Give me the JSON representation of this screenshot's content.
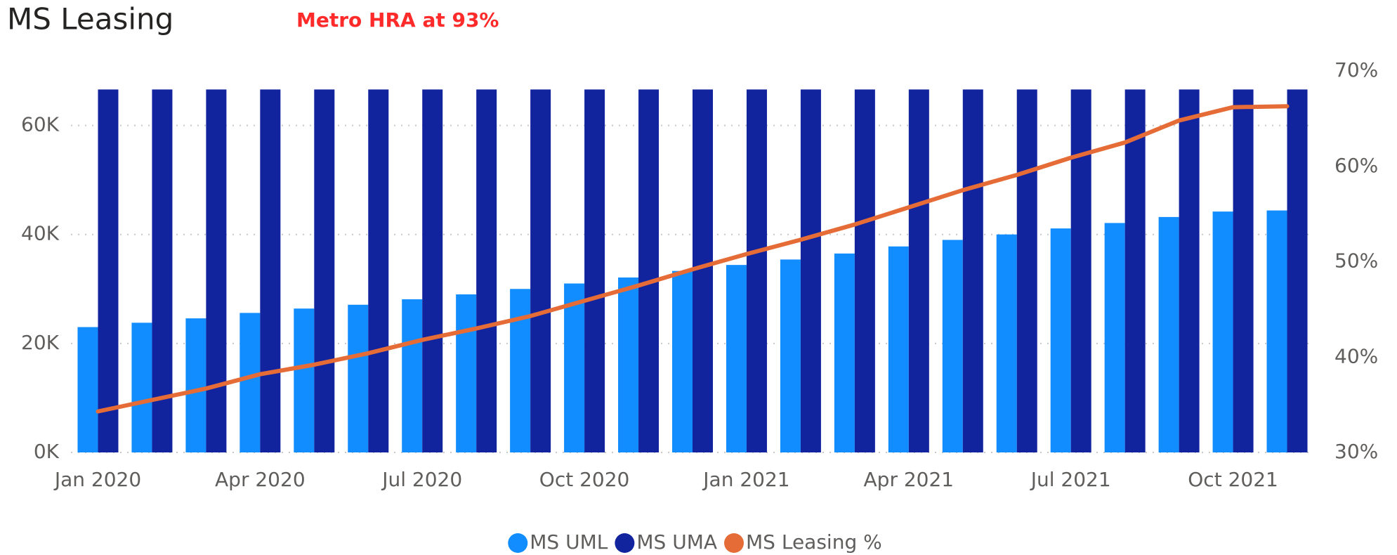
{
  "chart_data": {
    "type": "bar",
    "title": "MS Leasing",
    "annotation": "Metro HRA at 93%",
    "categories": [
      "Jan 2020",
      null,
      null,
      "Apr 2020",
      null,
      null,
      "Jul 2020",
      null,
      null,
      "Oct 2020",
      null,
      null,
      "Jan 2021",
      null,
      null,
      "Apr 2021",
      null,
      null,
      "Jul 2021",
      null,
      null,
      "Oct 2021",
      null
    ],
    "series": [
      {
        "name": "MS UML",
        "color": "#118DFF",
        "values": [
          23000,
          23800,
          24600,
          25600,
          26400,
          27100,
          28100,
          29000,
          30000,
          31000,
          32100,
          33300,
          34400,
          35400,
          36500,
          37800,
          39000,
          40000,
          41100,
          42100,
          43200,
          44200,
          44400
        ]
      },
      {
        "name": "MS UMA",
        "color": "#12239E",
        "values": [
          66600,
          66600,
          66600,
          66600,
          66600,
          66600,
          66600,
          66600,
          66600,
          66600,
          66600,
          66600,
          66600,
          66600,
          66600,
          66600,
          66600,
          66600,
          66600,
          66600,
          66600,
          66600,
          66600
        ]
      },
      {
        "name": "MS Leasing %",
        "color": "#E66C37",
        "type": "line",
        "axis": "y2",
        "values": [
          34.3,
          35.5,
          36.7,
          38.2,
          39.2,
          40.4,
          41.8,
          43.0,
          44.3,
          45.9,
          47.5,
          49.2,
          50.8,
          52.3,
          53.9,
          55.7,
          57.5,
          59.1,
          60.9,
          62.5,
          64.8,
          66.2,
          66.3
        ]
      }
    ],
    "ylim": [
      0,
      70000
    ],
    "yticks": [
      {
        "value": 0,
        "label": "0K"
      },
      {
        "value": 20000,
        "label": "20K"
      },
      {
        "value": 40000,
        "label": "40K"
      },
      {
        "value": 60000,
        "label": "60K"
      }
    ],
    "y2lim": [
      30,
      70
    ],
    "y2ticks": [
      {
        "value": 30,
        "label": "30%"
      },
      {
        "value": 40,
        "label": "40%"
      },
      {
        "value": 50,
        "label": "50%"
      },
      {
        "value": 60,
        "label": "60%"
      },
      {
        "value": 70,
        "label": "70%"
      }
    ],
    "grid": true
  }
}
